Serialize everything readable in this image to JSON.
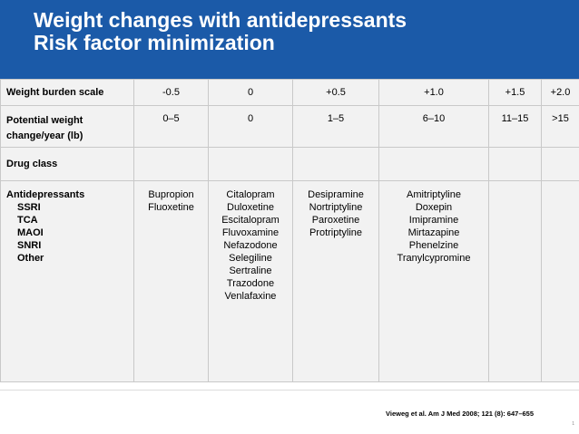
{
  "slide": {
    "title_line1": "Weight changes with antidepressants",
    "title_line2": "Risk factor minimization",
    "header_color": "#1b5aa8"
  },
  "table": {
    "weight_burden": {
      "label": "Weight burden scale",
      "values": [
        "-0.5",
        "0",
        "+0.5",
        "+1.0",
        "+1.5",
        "+2.0"
      ]
    },
    "potential_change": {
      "label": "Potential weight change/year (lb)",
      "values": [
        "0–5",
        "0",
        "1–5",
        "6–10",
        "11–15",
        ">15"
      ]
    },
    "drug_class": {
      "label": "Drug class"
    },
    "antidepressants": {
      "label": "Antidepressants",
      "subclasses": [
        "SSRI",
        "TCA",
        "MAOI",
        "SNRI",
        "Other"
      ],
      "columns": [
        [
          "Bupropion",
          "Fluoxetine"
        ],
        [
          "Citalopram",
          "Duloxetine",
          "Escitalopram",
          "Fluvoxamine",
          "Nefazodone",
          "Selegiline",
          "Sertraline",
          "Trazodone",
          "Venlafaxine"
        ],
        [
          "Desipramine",
          "Nortriptyline",
          "Paroxetine",
          "Protriptyline"
        ],
        [
          "Amitriptyline",
          "Doxepin",
          "Imipramine",
          "Mirtazapine",
          "Phenelzine",
          "Tranylcypromine"
        ],
        [],
        []
      ]
    }
  },
  "footer": {
    "citation": "Vieweg et al. Am J Med 2008; 121 (8): 647–655",
    "page_number": "1"
  }
}
